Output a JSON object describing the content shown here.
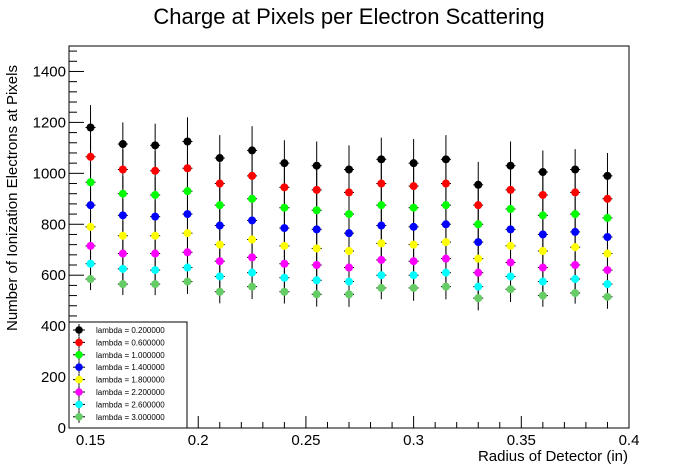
{
  "chart_data": {
    "type": "scatter",
    "title": "Charge at Pixels per Electron Scattering",
    "xlabel": "Radius of Detector (in)",
    "ylabel": "Number of Ionization Electrons at Pixels",
    "xlim": [
      0.14,
      0.4
    ],
    "ylim": [
      0,
      1500
    ],
    "x_ticks": [
      0.15,
      0.2,
      0.25,
      0.3,
      0.35,
      0.4
    ],
    "x_tick_labels": [
      "0.15",
      "0.2",
      "0.25",
      "0.3",
      "0.35",
      "0.4"
    ],
    "y_ticks": [
      0,
      200,
      400,
      600,
      800,
      1000,
      1200,
      1400
    ],
    "y_tick_labels": [
      "0",
      "200",
      "400",
      "600",
      "800",
      "1000",
      "1200",
      "1400"
    ],
    "grid": false,
    "legend_position": "bottom-left",
    "x": [
      0.15,
      0.165,
      0.18,
      0.195,
      0.21,
      0.225,
      0.24,
      0.255,
      0.27,
      0.285,
      0.3,
      0.315,
      0.33,
      0.345,
      0.36,
      0.375,
      0.39
    ],
    "series": [
      {
        "name": "lambda = 0.200000",
        "color": "#000000",
        "values": [
          1180,
          1115,
          1110,
          1125,
          1060,
          1090,
          1040,
          1030,
          1015,
          1055,
          1040,
          1055,
          955,
          1030,
          1005,
          1015,
          990
        ],
        "errors": [
          88,
          85,
          85,
          95,
          90,
          95,
          90,
          95,
          95,
          85,
          95,
          95,
          90,
          95,
          85,
          80,
          90
        ]
      },
      {
        "name": "lambda = 0.600000",
        "color": "#ff0000",
        "values": [
          1065,
          1015,
          1010,
          1020,
          960,
          990,
          945,
          935,
          925,
          960,
          950,
          960,
          875,
          935,
          915,
          925,
          900
        ]
      },
      {
        "name": "lambda = 1.000000",
        "color": "#00ff00",
        "values": [
          965,
          920,
          915,
          930,
          875,
          900,
          865,
          855,
          840,
          875,
          865,
          875,
          800,
          860,
          835,
          840,
          825
        ]
      },
      {
        "name": "lambda = 1.400000",
        "color": "#0000ff",
        "values": [
          875,
          835,
          830,
          840,
          795,
          815,
          785,
          780,
          765,
          795,
          790,
          800,
          730,
          780,
          760,
          770,
          750
        ]
      },
      {
        "name": "lambda = 1.800000",
        "color": "#ffff00",
        "values": [
          790,
          755,
          755,
          765,
          720,
          740,
          715,
          705,
          695,
          725,
          720,
          730,
          665,
          715,
          695,
          710,
          685
        ]
      },
      {
        "name": "lambda = 2.200000",
        "color": "#ff00ff",
        "values": [
          715,
          685,
          685,
          690,
          655,
          670,
          645,
          640,
          630,
          660,
          655,
          665,
          610,
          650,
          630,
          640,
          620
        ]
      },
      {
        "name": "lambda = 2.600000",
        "color": "#00ffff",
        "values": [
          645,
          625,
          620,
          630,
          595,
          610,
          590,
          580,
          575,
          600,
          600,
          610,
          555,
          595,
          575,
          585,
          565
        ]
      },
      {
        "name": "lambda = 3.000000",
        "color": "#66cc66",
        "values": [
          585,
          565,
          565,
          575,
          535,
          555,
          535,
          525,
          525,
          550,
          550,
          555,
          510,
          545,
          520,
          530,
          515
        ]
      }
    ]
  }
}
